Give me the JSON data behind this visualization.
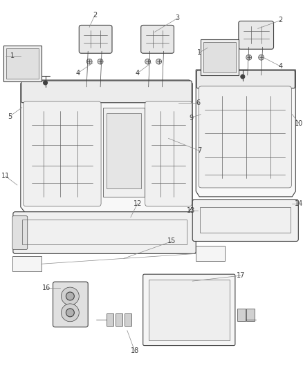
{
  "bg_color": "#ffffff",
  "line_color": "#404040",
  "label_color": "#222222",
  "thin_color": "#606060",
  "fig_width": 4.38,
  "fig_height": 5.33,
  "dpi": 100
}
